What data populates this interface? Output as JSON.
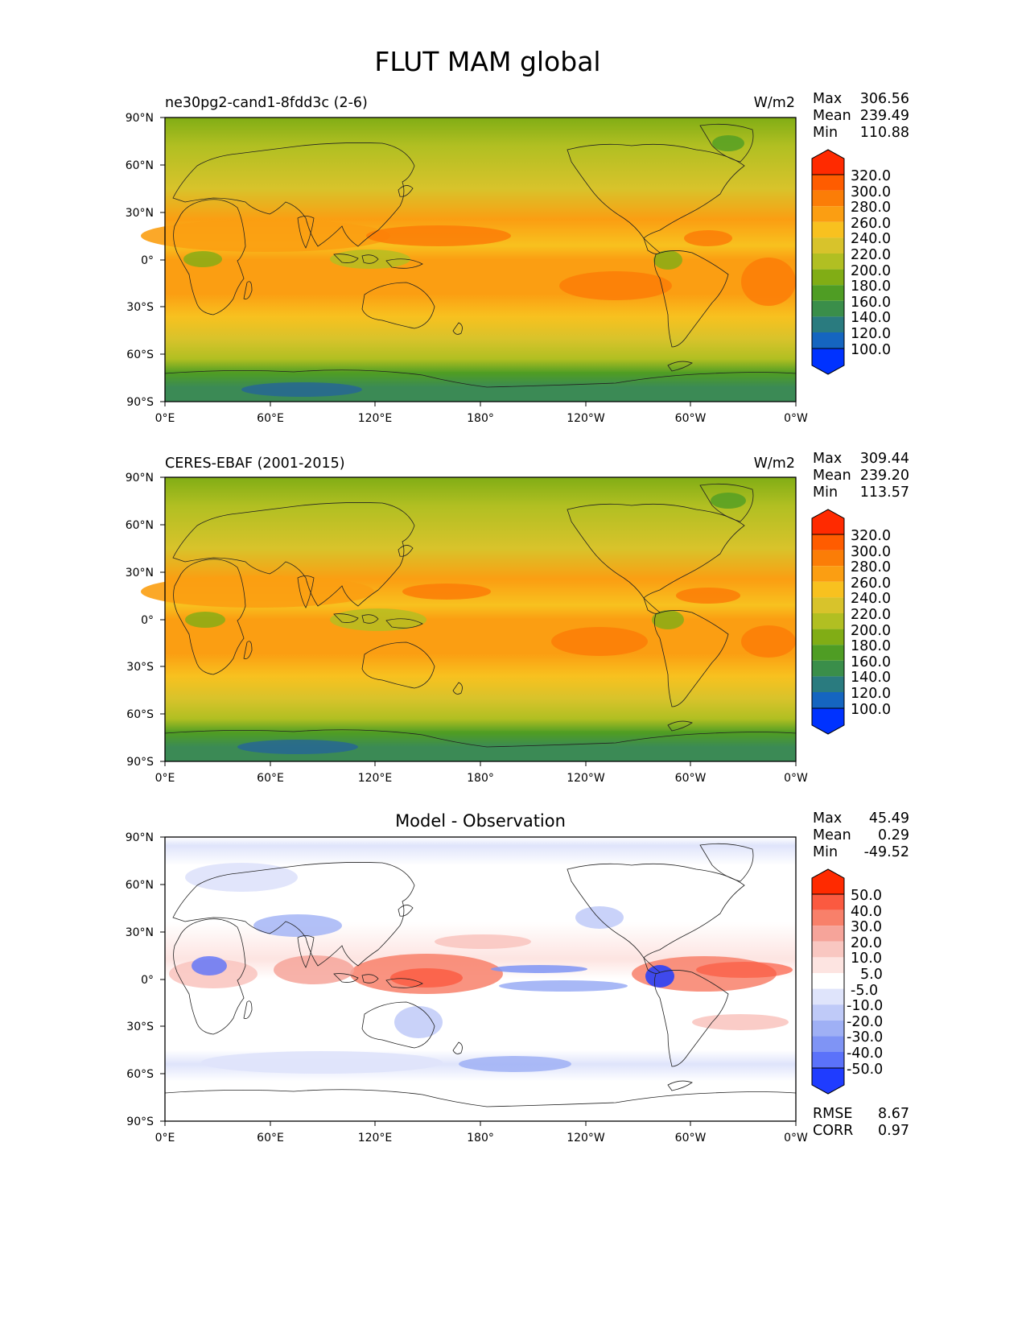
{
  "figure": {
    "title": "FLUT MAM global"
  },
  "axes": {
    "y_ticks": [
      "90°N",
      "60°N",
      "30°N",
      "0°",
      "30°S",
      "60°S",
      "90°S"
    ],
    "x_ticks": [
      "0°E",
      "60°E",
      "120°E",
      "180°",
      "120°W",
      "60°W",
      "0°W"
    ]
  },
  "stats_labels": {
    "max": "Max",
    "mean": "Mean",
    "min": "Min",
    "rmse": "RMSE",
    "corr": "CORR"
  },
  "chart_data": [
    {
      "type": "heatmap",
      "panel": "test",
      "title": "ne30pg2-cand1-8fdd3c (2-6)",
      "units": "W/m2",
      "stats": {
        "max": "306.56",
        "mean": "239.49",
        "min": "110.88"
      },
      "colorbar_ticks": [
        "320.0",
        "300.0",
        "280.0",
        "260.0",
        "240.0",
        "220.0",
        "200.0",
        "180.0",
        "160.0",
        "140.0",
        "120.0",
        "100.0"
      ],
      "colorbar_colors": [
        "#ff2a00",
        "#ff5c00",
        "#fb7d07",
        "#fb9e12",
        "#f8c11f",
        "#d8c32b",
        "#b1bf22",
        "#81ad15",
        "#4f9d24",
        "#3a8e4a",
        "#2a7b7f",
        "#1565c0",
        "#0032ff"
      ],
      "zonal_profile": {
        "lat": [
          90,
          75,
          60,
          45,
          30,
          20,
          10,
          0,
          -10,
          -20,
          -30,
          -45,
          -60,
          -75,
          -90
        ],
        "flut": [
          190,
          200,
          205,
          225,
          262,
          270,
          240,
          230,
          255,
          268,
          255,
          230,
          205,
          165,
          135
        ]
      },
      "ylim": [
        -90,
        90
      ],
      "xlim": [
        0,
        360
      ]
    },
    {
      "type": "heatmap",
      "panel": "reference",
      "title": "CERES-EBAF (2001-2015)",
      "units": "W/m2",
      "stats": {
        "max": "309.44",
        "mean": "239.20",
        "min": "113.57"
      },
      "colorbar_ticks": [
        "320.0",
        "300.0",
        "280.0",
        "260.0",
        "240.0",
        "220.0",
        "200.0",
        "180.0",
        "160.0",
        "140.0",
        "120.0",
        "100.0"
      ],
      "colorbar_colors": [
        "#ff2a00",
        "#ff5c00",
        "#fb7d07",
        "#fb9e12",
        "#f8c11f",
        "#d8c32b",
        "#b1bf22",
        "#81ad15",
        "#4f9d24",
        "#3a8e4a",
        "#2a7b7f",
        "#1565c0",
        "#0032ff"
      ],
      "zonal_profile": {
        "lat": [
          90,
          75,
          60,
          45,
          30,
          20,
          10,
          0,
          -10,
          -20,
          -30,
          -45,
          -60,
          -75,
          -90
        ],
        "flut": [
          192,
          198,
          205,
          226,
          262,
          268,
          238,
          232,
          256,
          268,
          255,
          230,
          205,
          160,
          135
        ]
      },
      "ylim": [
        -90,
        90
      ],
      "xlim": [
        0,
        360
      ]
    },
    {
      "type": "heatmap",
      "panel": "diff",
      "title": "Model - Observation",
      "units": "",
      "stats": {
        "max": "45.49",
        "mean": "0.29",
        "min": "-49.52"
      },
      "metrics": {
        "rmse": "8.67",
        "corr": "0.97"
      },
      "colorbar_ticks": [
        "50.0",
        "40.0",
        "30.0",
        "20.0",
        "10.0",
        "5.0",
        "-5.0",
        "-10.0",
        "-20.0",
        "-30.0",
        "-40.0",
        "-50.0"
      ],
      "colorbar_colors": [
        "#ff2a00",
        "#fb5a40",
        "#f8806a",
        "#f6a49a",
        "#f9c7c1",
        "#fde4e1",
        "#ffffff",
        "#dfe4fb",
        "#bfcaf8",
        "#9fb0f5",
        "#7f94f5",
        "#5b72fa",
        "#1f3cff"
      ],
      "ylim": [
        -90,
        90
      ],
      "xlim": [
        0,
        360
      ]
    }
  ]
}
